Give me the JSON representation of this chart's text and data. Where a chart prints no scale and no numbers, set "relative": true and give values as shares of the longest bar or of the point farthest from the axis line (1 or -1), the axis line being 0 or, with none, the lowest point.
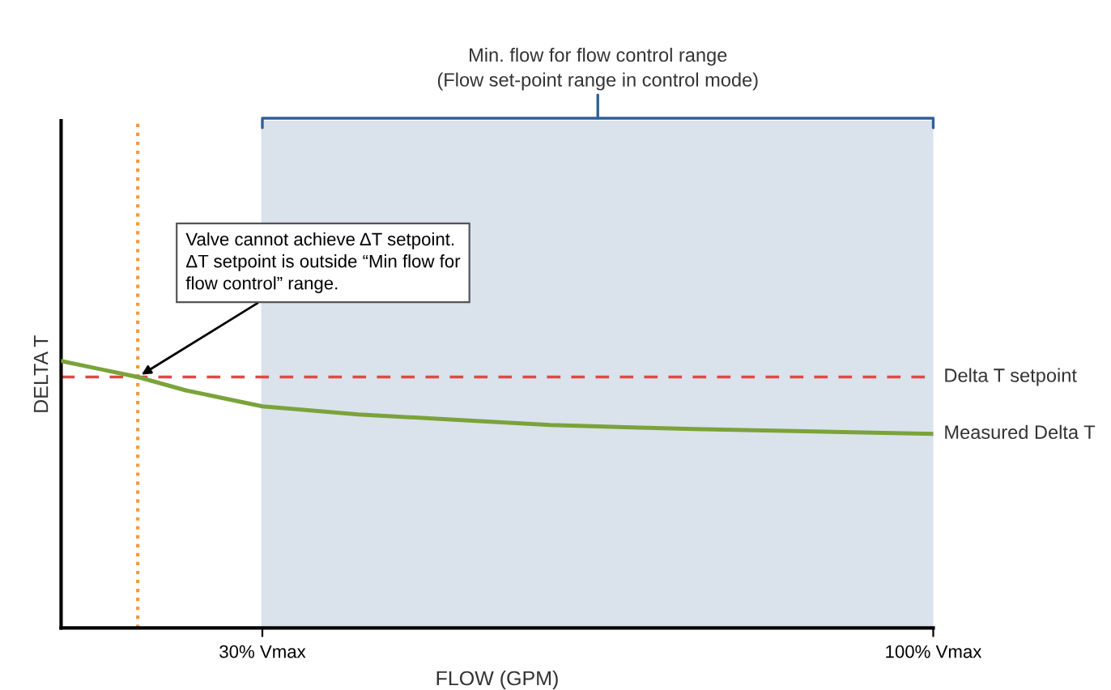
{
  "chart_data": {
    "type": "line",
    "xlabel": "FLOW (GPM)",
    "ylabel": "DELTA T",
    "relative": true,
    "xlim": [
      9,
      100
    ],
    "xticks": [
      {
        "value": 30,
        "label": "30% Vmax"
      },
      {
        "value": 100,
        "label": "100% Vmax"
      }
    ],
    "x": [
      9,
      13,
      17,
      22,
      30,
      40,
      50,
      60,
      75,
      100
    ],
    "series": [
      {
        "name": "Measured Delta T",
        "color": "#7aa33a",
        "values": [
          1,
          0.97,
          0.94,
          0.89,
          0.83,
          0.8,
          0.78,
          0.76,
          0.745,
          0.727
        ]
      }
    ],
    "ref_lines": [
      {
        "axis": "y",
        "value": 0.94,
        "label": "Delta T setpoint",
        "color": "#e04848",
        "line_style": "dashed"
      },
      {
        "axis": "x",
        "value": 17,
        "label": null,
        "color": "#f59a3a",
        "line_style": "dotted"
      }
    ],
    "bands": [
      {
        "axis": "x",
        "from": 30,
        "to": 100,
        "label": "Min. flow for flow control range\n(Flow set-point range in control mode)",
        "color": "#dae2ec"
      }
    ],
    "annotations": [
      {
        "text": "Valve cannot achieve ΔT setpoint.\nΔT setpoint is outside “Min flow for\nflow control” range.",
        "x": 17,
        "y": 0.94
      }
    ],
    "grid": false,
    "legend": false
  }
}
